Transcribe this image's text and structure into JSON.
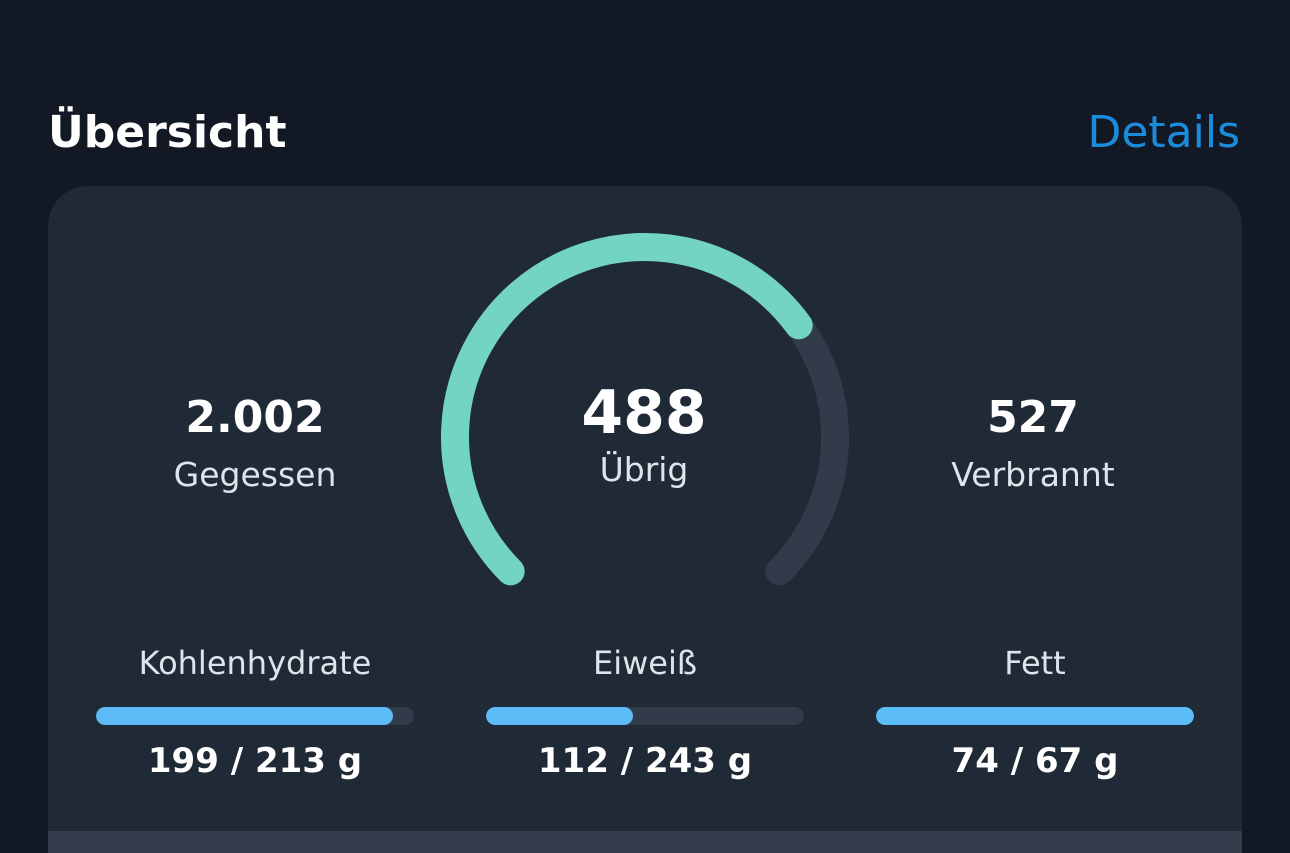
{
  "header": {
    "title": "Übersicht",
    "details_label": "Details"
  },
  "summary": {
    "eaten": {
      "value": "2.002",
      "label": "Gegessen"
    },
    "remaining": {
      "value": "488",
      "label": "Übrig"
    },
    "burned": {
      "value": "527",
      "label": "Verbrannt"
    },
    "gauge_fraction": 0.7
  },
  "macros": [
    {
      "label": "Kohlenhydrate",
      "amount": "199 / 213 g",
      "consumed": 199,
      "goal": 213
    },
    {
      "label": "Eiweiß",
      "amount": "112 / 243 g",
      "consumed": 112,
      "goal": 243
    },
    {
      "label": "Fett",
      "amount": "74 / 67 g",
      "consumed": 74,
      "goal": 67
    }
  ],
  "colors": {
    "accent": "#1a8cdb",
    "gauge_progress": "#72d4c1",
    "gauge_track": "#323b49",
    "macro_fill": "#5bbcf7"
  }
}
